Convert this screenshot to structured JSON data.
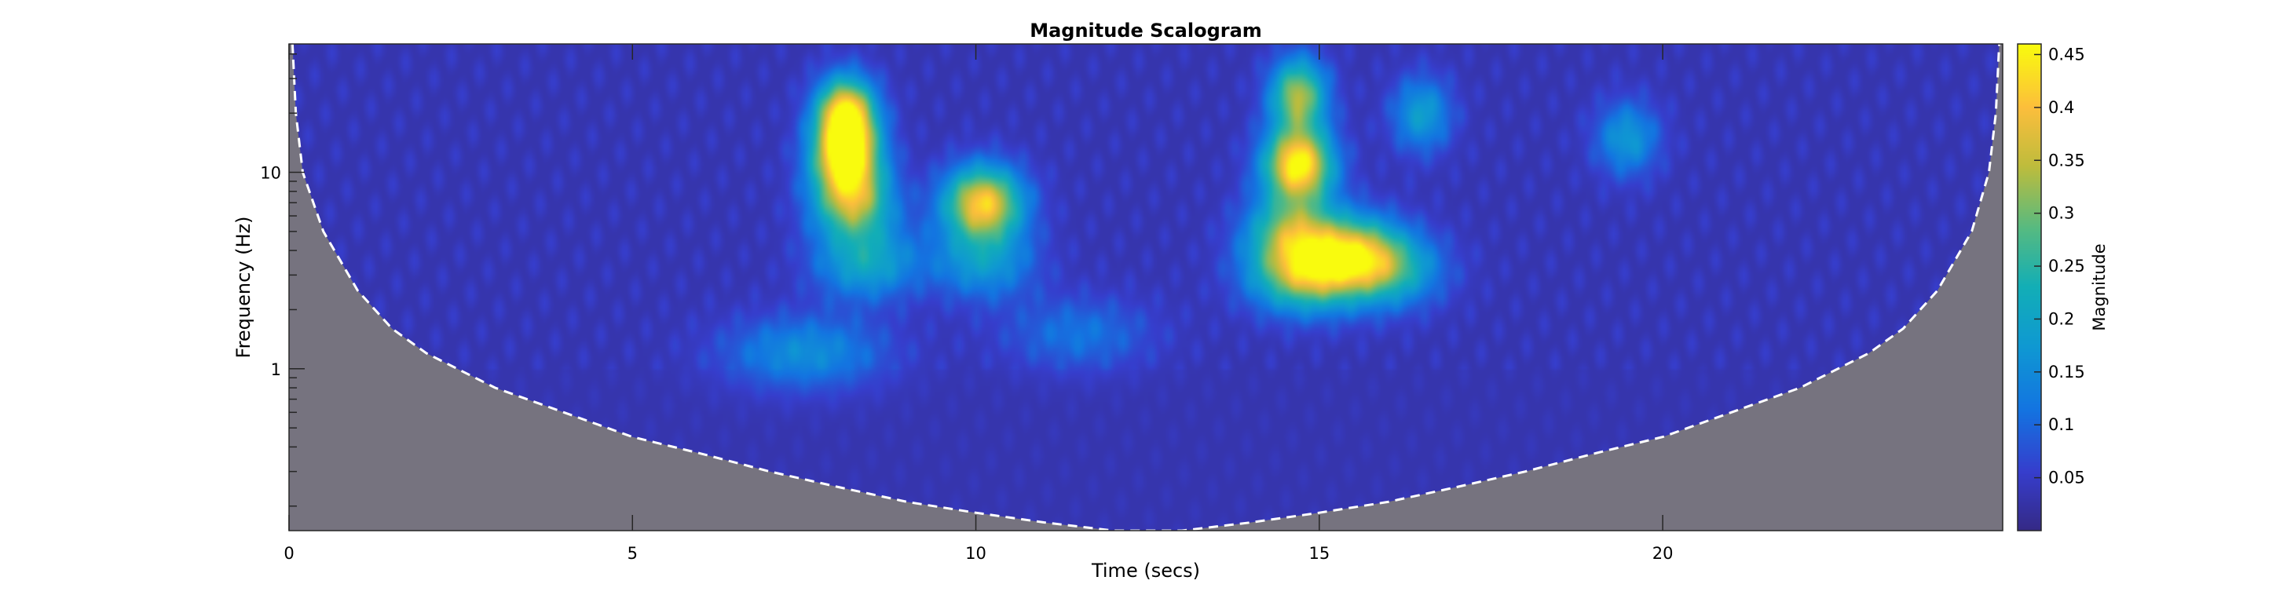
{
  "chart_data": {
    "type": "heatmap",
    "title": "Magnitude Scalogram",
    "xlabel": "Time (secs)",
    "ylabel": "Frequency (Hz)",
    "xlim": [
      0,
      24.95
    ],
    "ylim": [
      0.15,
      45
    ],
    "yscale": "log",
    "x_ticks": [
      0,
      5,
      10,
      15,
      20
    ],
    "x_tick_labels": [
      "0",
      "5",
      "10",
      "15",
      "20"
    ],
    "y_ticks": [
      1,
      10
    ],
    "y_tick_labels": [
      "1",
      "10"
    ],
    "colorbar": {
      "label": "Magnitude",
      "colormap": "parula",
      "range": [
        0,
        0.46
      ],
      "ticks": [
        0.05,
        0.1,
        0.15,
        0.2,
        0.25,
        0.3,
        0.35,
        0.4,
        0.45
      ],
      "tick_labels": [
        "0.05",
        "0.1",
        "0.15",
        "0.2",
        "0.25",
        "0.3",
        "0.35",
        "0.4",
        "0.45"
      ]
    },
    "background_magnitude": 0.03,
    "hotspots": [
      {
        "t": 8.1,
        "f": 20,
        "mag": 0.42
      },
      {
        "t": 8.1,
        "f": 12,
        "mag": 0.4
      },
      {
        "t": 8.2,
        "f": 7,
        "mag": 0.28
      },
      {
        "t": 8.4,
        "f": 3.5,
        "mag": 0.17
      },
      {
        "t": 10.1,
        "f": 7,
        "mag": 0.38
      },
      {
        "t": 10.1,
        "f": 3.5,
        "mag": 0.14
      },
      {
        "t": 14.7,
        "f": 11,
        "mag": 0.43
      },
      {
        "t": 14.7,
        "f": 25,
        "mag": 0.3
      },
      {
        "t": 14.6,
        "f": 5,
        "mag": 0.25
      },
      {
        "t": 14.8,
        "f": 3,
        "mag": 0.3
      },
      {
        "t": 15.5,
        "f": 4,
        "mag": 0.25
      },
      {
        "t": 16.0,
        "f": 3.2,
        "mag": 0.2
      },
      {
        "t": 7.5,
        "f": 1.2,
        "mag": 0.12
      },
      {
        "t": 16.5,
        "f": 20,
        "mag": 0.15
      },
      {
        "t": 19.5,
        "f": 15,
        "mag": 0.14
      },
      {
        "t": 11.5,
        "f": 1.5,
        "mag": 0.08
      }
    ],
    "cone_of_influence": {
      "style": "dashed white line, shaded gray outside",
      "shade_color": "#76737f",
      "points": [
        [
          0.05,
          45
        ],
        [
          0.1,
          20
        ],
        [
          0.2,
          10
        ],
        [
          0.5,
          5
        ],
        [
          1,
          2.5
        ],
        [
          1.5,
          1.6
        ],
        [
          2,
          1.2
        ],
        [
          3,
          0.8
        ],
        [
          4,
          0.6
        ],
        [
          5,
          0.45
        ],
        [
          6,
          0.37
        ],
        [
          7,
          0.3
        ],
        [
          8,
          0.25
        ],
        [
          9,
          0.21
        ],
        [
          10,
          0.185
        ],
        [
          11,
          0.165
        ],
        [
          12,
          0.15
        ],
        [
          13,
          0.15
        ],
        [
          14,
          0.165
        ],
        [
          15,
          0.185
        ],
        [
          16,
          0.21
        ],
        [
          17,
          0.25
        ],
        [
          18,
          0.3
        ],
        [
          19,
          0.37
        ],
        [
          20,
          0.45
        ],
        [
          21,
          0.6
        ],
        [
          22,
          0.8
        ],
        [
          23,
          1.2
        ],
        [
          23.5,
          1.6
        ],
        [
          24,
          2.5
        ],
        [
          24.5,
          5
        ],
        [
          24.75,
          10
        ],
        [
          24.85,
          20
        ],
        [
          24.9,
          45
        ]
      ]
    }
  }
}
